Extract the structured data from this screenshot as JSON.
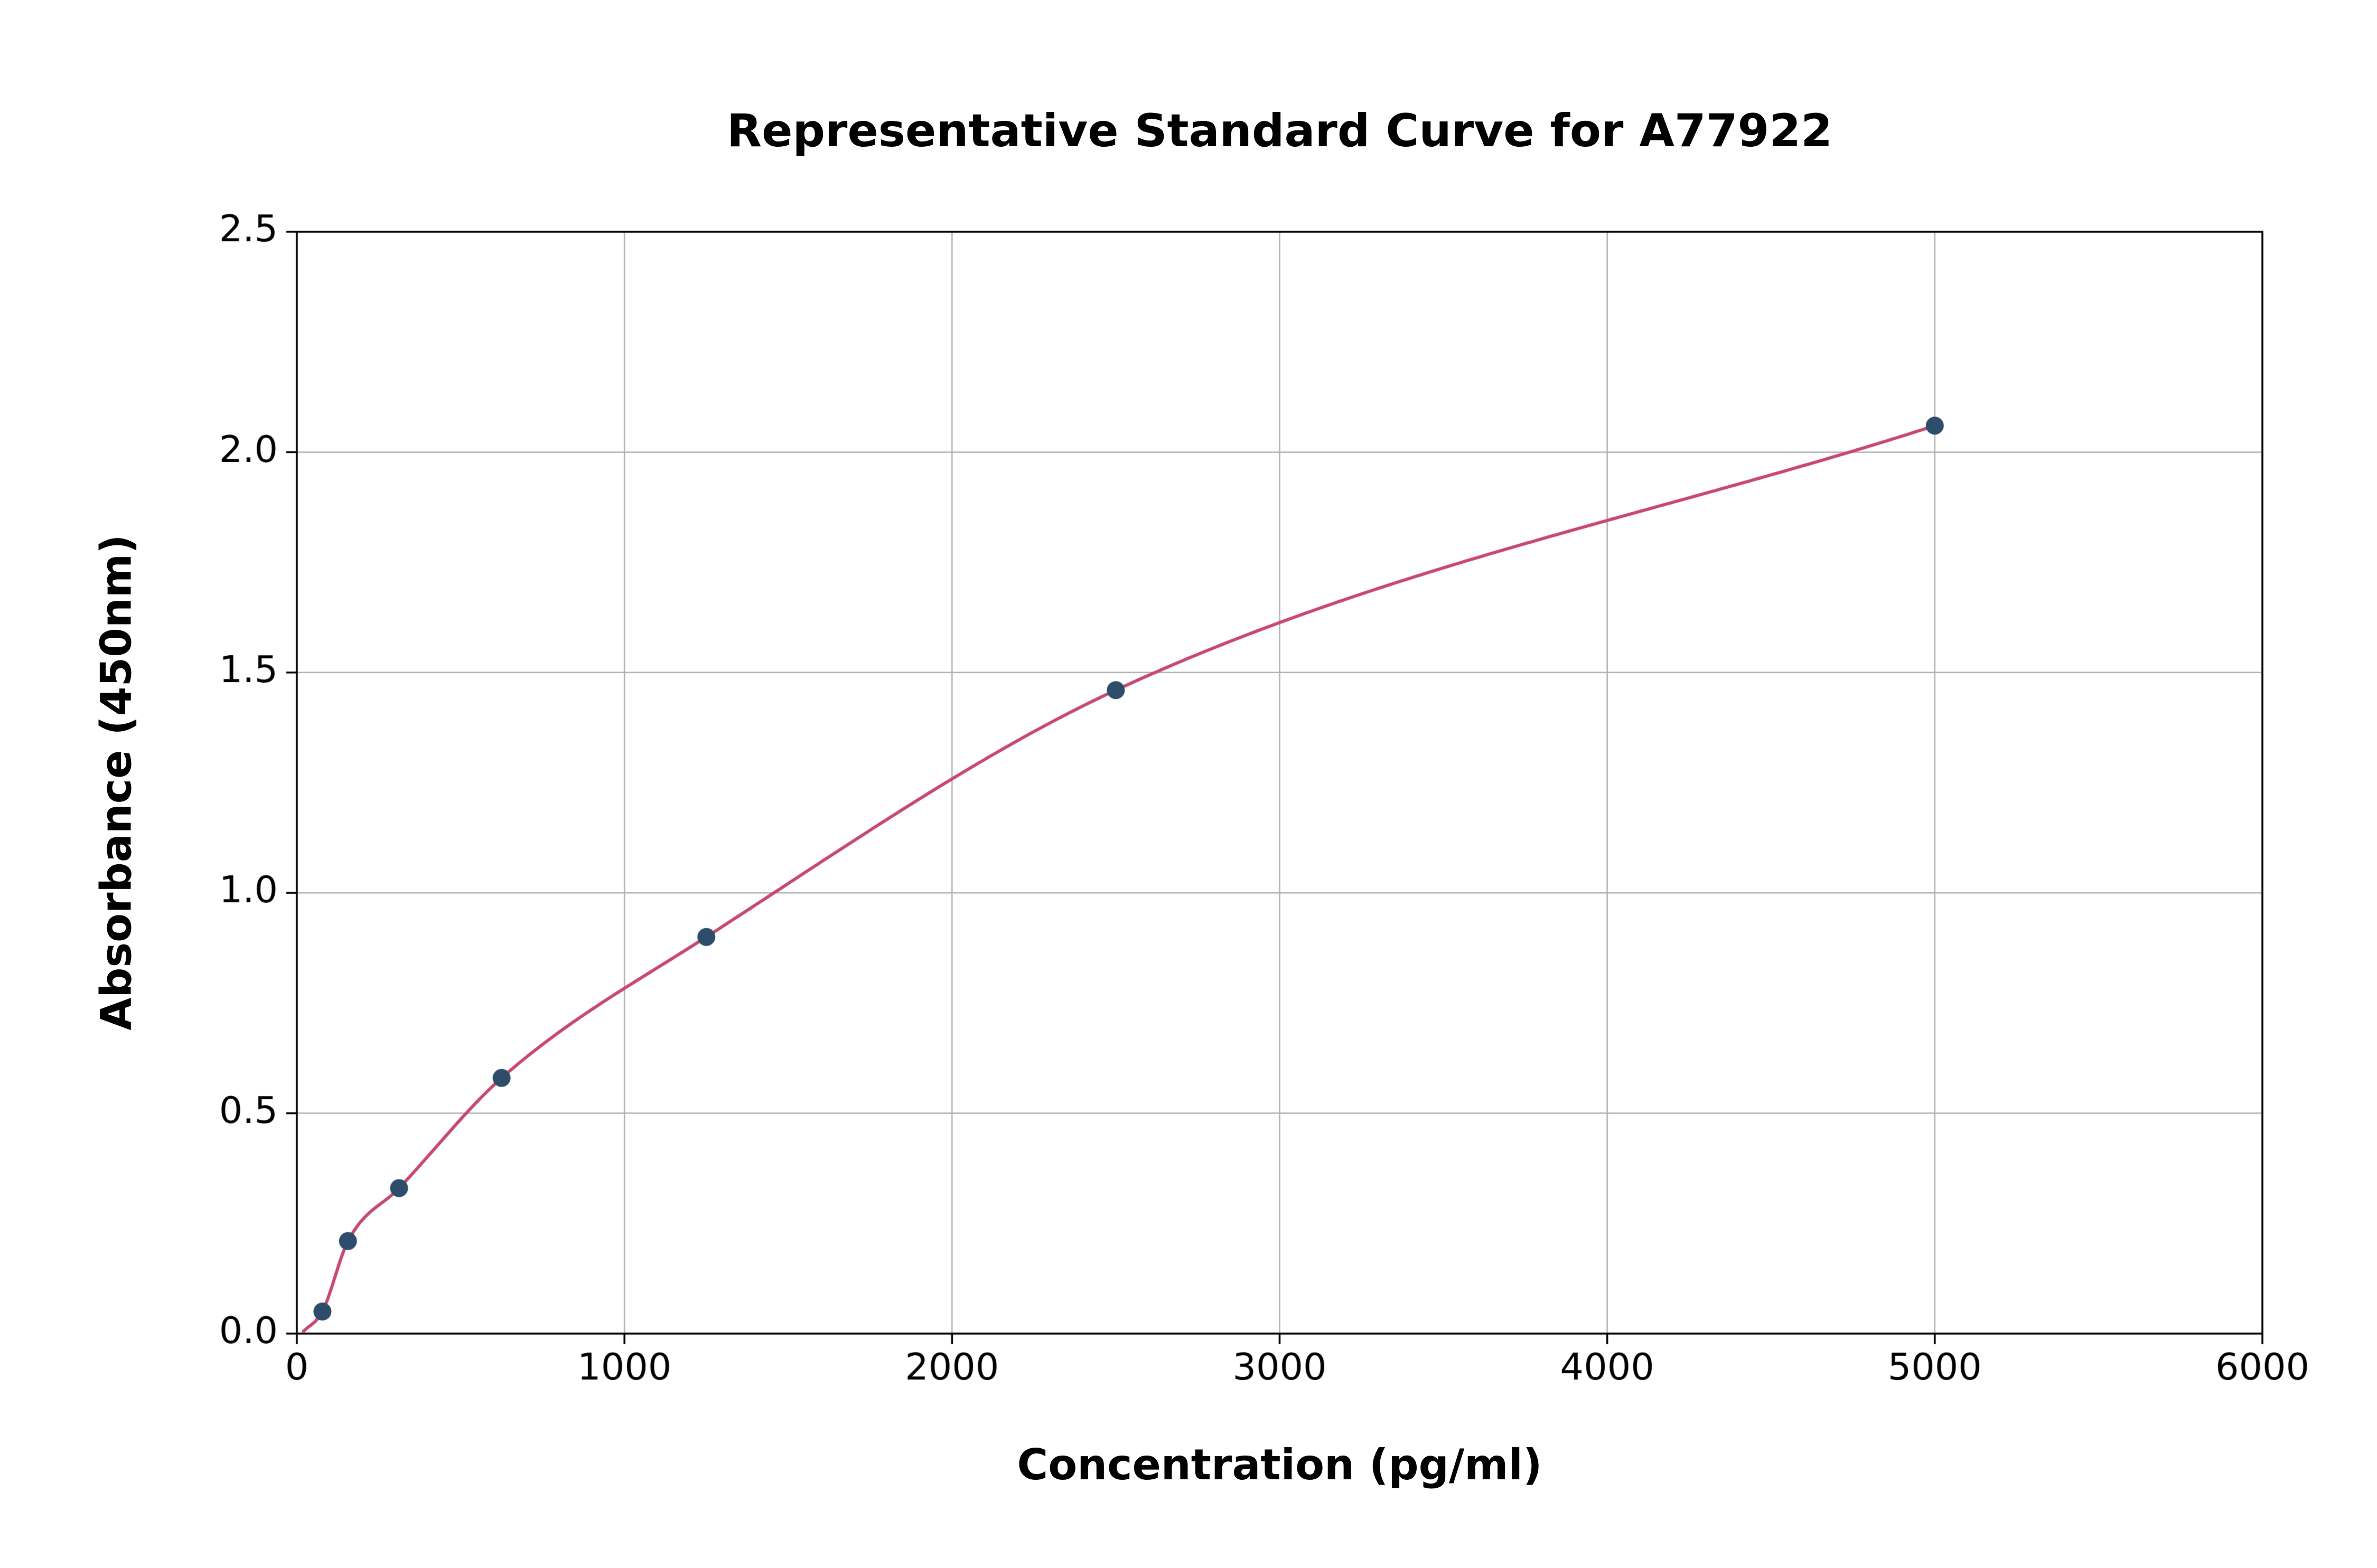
{
  "page": {
    "background": "#ffffff"
  },
  "chart_data": {
    "type": "scatter",
    "title": "Representative Standard Curve for A77922",
    "xlabel": "Concentration (pg/ml)",
    "ylabel": "Absorbance (450nm)",
    "xlim": [
      0,
      6000
    ],
    "ylim": [
      0,
      2.5
    ],
    "xticks": [
      0,
      1000,
      2000,
      3000,
      4000,
      5000,
      6000
    ],
    "xtick_labels": [
      "0",
      "1000",
      "2000",
      "3000",
      "4000",
      "5000",
      "6000"
    ],
    "yticks": [
      0,
      0.5,
      1.0,
      1.5,
      2.0,
      2.5
    ],
    "ytick_labels": [
      "0.0",
      "0.5",
      "1.0",
      "1.5",
      "2.0",
      "2.5"
    ],
    "grid": true,
    "legend": "none",
    "series": [
      {
        "name": "standard-points",
        "x": [
          78,
          156,
          312,
          625,
          1250,
          2500,
          5000
        ],
        "y": [
          0.05,
          0.21,
          0.33,
          0.58,
          0.9,
          1.46,
          2.06
        ],
        "marker": "circle",
        "marker_color": "#2e4d6b"
      }
    ],
    "fit_curve": {
      "name": "fitted-standard-curve",
      "color": "#c84870",
      "start_x": 20,
      "start_y": 0.005,
      "end_x": 5000
    },
    "style": {
      "grid_color": "#b0b0b0",
      "spine_color": "#000000",
      "text_color": "#000000",
      "plot_background": "#ffffff"
    }
  }
}
